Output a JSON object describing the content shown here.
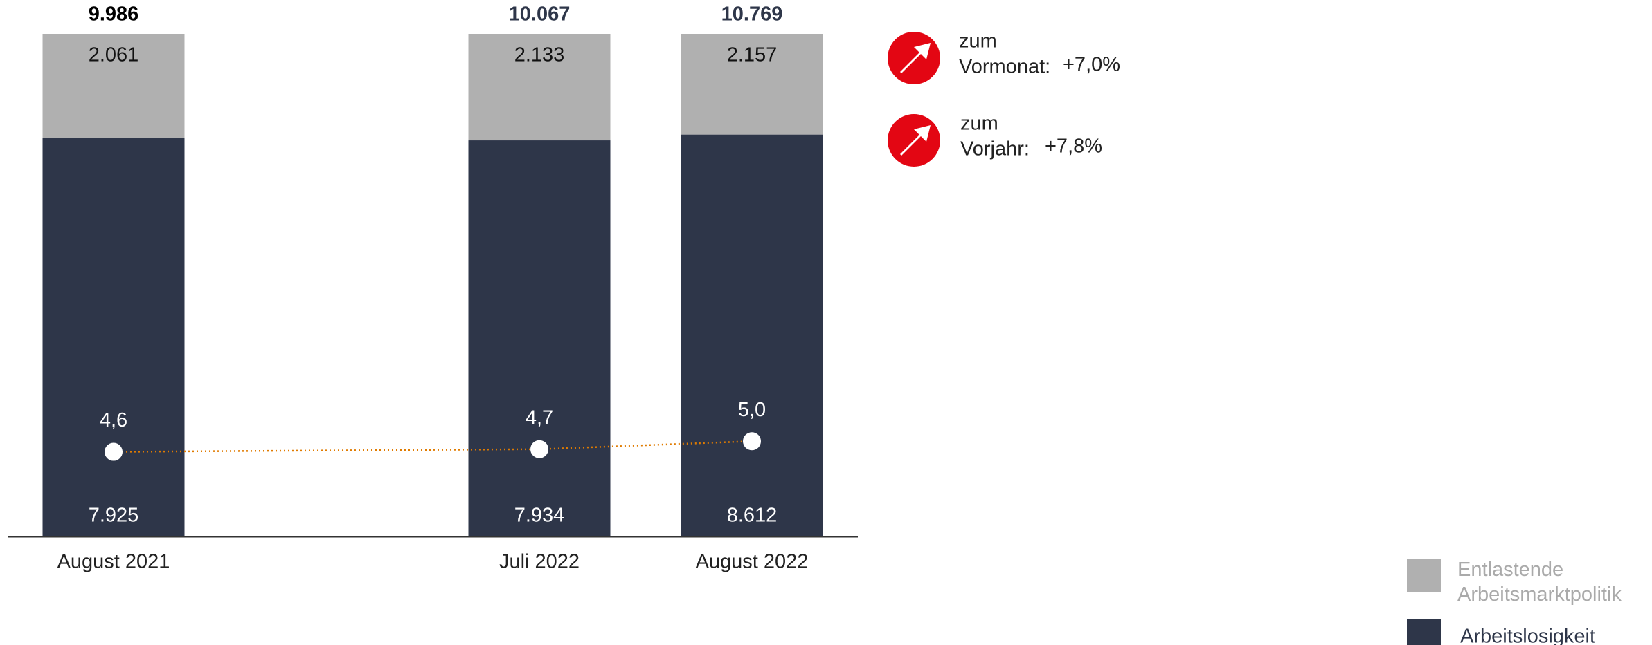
{
  "chart_data": {
    "type": "bar",
    "stacking": "percent",
    "categories": [
      "August 2021",
      "Juli 2022",
      "August 2022"
    ],
    "series": [
      {
        "name": "Arbeitslosigkeit",
        "color": "#2e3649",
        "values": [
          7925,
          7934,
          8612
        ],
        "value_labels": [
          "7.925",
          "7.934",
          "8.612"
        ]
      },
      {
        "name": "Entlastende Arbeitsmarktpolitik",
        "color": "#b0b0b0",
        "values": [
          2061,
          2133,
          2157
        ],
        "value_labels": [
          "2.061",
          "2.133",
          "2.157"
        ]
      },
      {
        "type": "line",
        "axis": "y2",
        "color": "#e07b00",
        "marker_color": "#ffffff",
        "values": [
          4.6,
          4.7,
          5.0
        ],
        "value_labels": [
          "4,6",
          "4,7",
          "5,0"
        ]
      }
    ],
    "totals": [
      9986,
      10067,
      10769
    ],
    "total_labels": [
      "9.986",
      "10.067",
      "10.769"
    ],
    "total_label_colors": [
      "#000000",
      "#2e3649",
      "#2e3649"
    ],
    "y2lim": [
      1.4,
      20.4
    ],
    "annotations": [
      {
        "label": [
          "zum",
          "Vormonat:"
        ],
        "value": "+7,0%"
      },
      {
        "label": [
          "zum",
          "Vorjahr:"
        ],
        "value": "+7,8%"
      }
    ]
  }
}
